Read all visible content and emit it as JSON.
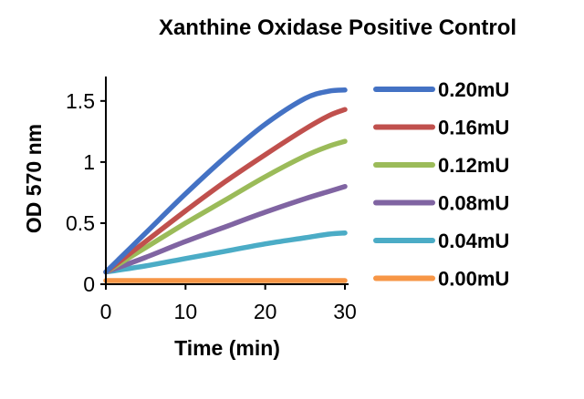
{
  "chart_data": {
    "type": "line",
    "title": "Xanthine Oxidase Positive Control",
    "xlabel": "Time (min)",
    "ylabel": "OD  570 nm",
    "xlim": [
      0,
      30
    ],
    "ylim": [
      0,
      1.7
    ],
    "x_ticks": [
      0,
      10,
      20,
      30
    ],
    "y_ticks": [
      0,
      0.5,
      1,
      1.5
    ],
    "x_tick_labels": [
      "0",
      "10",
      "20",
      "30"
    ],
    "y_tick_labels": [
      "0",
      "0.5",
      "1",
      "1.5"
    ],
    "grid": false,
    "legend_position": "right",
    "x": [
      0,
      5,
      10,
      15,
      20,
      25,
      28,
      30
    ],
    "series": [
      {
        "name": "0.20mU",
        "color": "#4472C4",
        "values": [
          0.1,
          0.42,
          0.74,
          1.04,
          1.31,
          1.52,
          1.58,
          1.59
        ]
      },
      {
        "name": "0.16mU",
        "color": "#C0504D",
        "values": [
          0.1,
          0.35,
          0.6,
          0.84,
          1.06,
          1.27,
          1.38,
          1.43
        ]
      },
      {
        "name": "0.12mU",
        "color": "#9BBB59",
        "values": [
          0.1,
          0.3,
          0.5,
          0.69,
          0.88,
          1.05,
          1.13,
          1.17
        ]
      },
      {
        "name": "0.08mU",
        "color": "#8064A2",
        "values": [
          0.1,
          0.22,
          0.35,
          0.47,
          0.59,
          0.7,
          0.76,
          0.8
        ]
      },
      {
        "name": "0.04mU",
        "color": "#4BACC6",
        "values": [
          0.1,
          0.15,
          0.21,
          0.27,
          0.33,
          0.38,
          0.41,
          0.42
        ]
      },
      {
        "name": "0.00mU",
        "color": "#F79646",
        "values": [
          0.03,
          0.03,
          0.03,
          0.03,
          0.03,
          0.03,
          0.03,
          0.03
        ]
      }
    ]
  }
}
